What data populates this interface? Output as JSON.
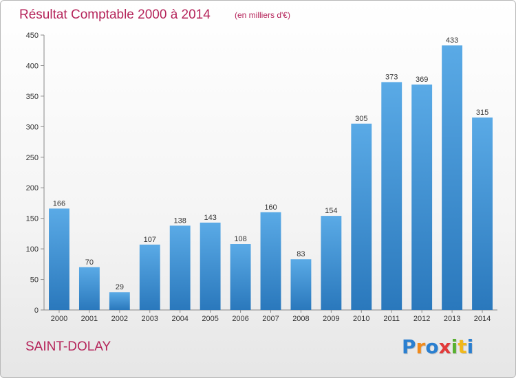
{
  "place_name": "SAINT-DOLAY",
  "brand": {
    "text": "Proxiti",
    "letters": [
      {
        "ch": "P",
        "color": "#2a7fd0"
      },
      {
        "ch": "r",
        "color": "#f08a1c"
      },
      {
        "ch": "o",
        "color": "#2a7fd0"
      },
      {
        "ch": "x",
        "color": "#e23a3a"
      },
      {
        "ch": "i",
        "color": "#58b030"
      },
      {
        "ch": "t",
        "color": "#f0b81c"
      },
      {
        "ch": "i",
        "color": "#2a7fd0"
      }
    ]
  },
  "chart_data": {
    "type": "bar",
    "title": "Résultat Comptable 2000 à 2014",
    "subtitle": "(en milliers d'€)",
    "categories": [
      "2000",
      "2001",
      "2002",
      "2003",
      "2004",
      "2005",
      "2006",
      "2007",
      "2008",
      "2009",
      "2010",
      "2011",
      "2012",
      "2013",
      "2014"
    ],
    "values": [
      166,
      70,
      29,
      107,
      138,
      143,
      108,
      160,
      83,
      154,
      305,
      373,
      369,
      433,
      315
    ],
    "ylim": [
      0,
      450
    ],
    "yticks": [
      0,
      50,
      100,
      150,
      200,
      250,
      300,
      350,
      400,
      450
    ],
    "grid": false,
    "bar_color": "#4a9ede",
    "title_color": "#b5245a"
  }
}
